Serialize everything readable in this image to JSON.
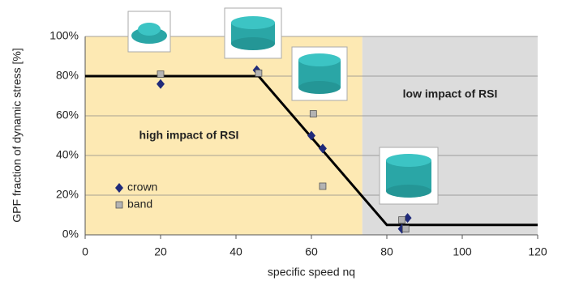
{
  "chart_data": {
    "type": "scatter",
    "x_label": "specific speed nq",
    "y_label": "GPF fraction of dynamic stress [%]",
    "xlim": [
      0,
      120
    ],
    "xticks": [
      0,
      20,
      40,
      60,
      80,
      100,
      120
    ],
    "ylim": [
      0,
      100
    ],
    "yticks": [
      {
        "value": 0,
        "label": "0%"
      },
      {
        "value": 20,
        "label": "20%"
      },
      {
        "value": 40,
        "label": "40%"
      },
      {
        "value": 60,
        "label": "60%"
      },
      {
        "value": 80,
        "label": "80%"
      },
      {
        "value": 100,
        "label": "100%"
      }
    ],
    "grid": true,
    "regions": [
      {
        "label": "high impact of RSI",
        "xlim": [
          0,
          73.5
        ],
        "color": "#fde9b3"
      },
      {
        "label": "low impact of RSI",
        "xlim": [
          73.5,
          120
        ],
        "color": "#dcdcdc"
      }
    ],
    "trend_line": {
      "x": [
        0,
        46,
        80,
        120
      ],
      "values": [
        80,
        80,
        5,
        5
      ],
      "color": "#000000"
    },
    "series": [
      {
        "name": "crown",
        "marker": "diamond",
        "color": "#1f2a7a",
        "x": [
          20,
          45.5,
          60,
          63,
          84,
          85.5
        ],
        "values": [
          76,
          83,
          50,
          43.5,
          3,
          8.5
        ]
      },
      {
        "name": "band",
        "marker": "square",
        "color": "#b3b3b3",
        "x": [
          20,
          46,
          60.5,
          63,
          84,
          85
        ],
        "values": [
          81,
          81.5,
          61,
          24.5,
          7.5,
          3
        ]
      }
    ],
    "legend": "lower-left"
  }
}
